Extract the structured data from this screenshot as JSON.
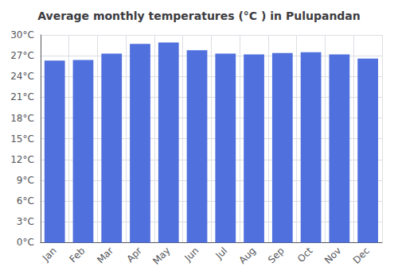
{
  "chart_data": {
    "type": "bar",
    "title": "Average monthly temperatures (°C ) in Pulupandan",
    "categories": [
      "Jan",
      "Feb",
      "Mar",
      "Apr",
      "May",
      "Jun",
      "Jul",
      "Aug",
      "Sep",
      "Oct",
      "Nov",
      "Dec"
    ],
    "values": [
      26.3,
      26.4,
      27.3,
      28.7,
      28.9,
      27.8,
      27.3,
      27.2,
      27.4,
      27.5,
      27.2,
      26.6
    ],
    "ylim": [
      0,
      30
    ],
    "yticks": [
      {
        "value": 0,
        "label": "0°C"
      },
      {
        "value": 3,
        "label": "3°C"
      },
      {
        "value": 6,
        "label": "6°C"
      },
      {
        "value": 9,
        "label": "9°C"
      },
      {
        "value": 12,
        "label": "12°C"
      },
      {
        "value": 15,
        "label": "15°C"
      },
      {
        "value": 18,
        "label": "18°C"
      },
      {
        "value": 21,
        "label": "21°C"
      },
      {
        "value": 24,
        "label": "24°C"
      },
      {
        "value": 27,
        "label": "27°C"
      },
      {
        "value": 30,
        "label": "30°C"
      }
    ],
    "grid": true
  }
}
